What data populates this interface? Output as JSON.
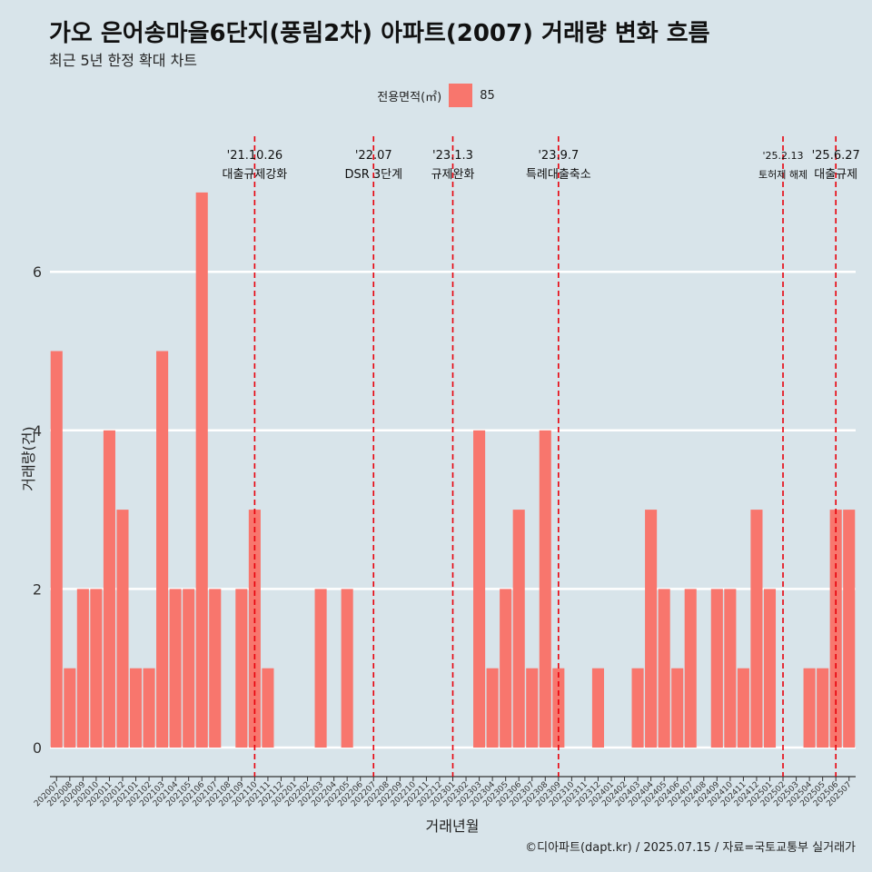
{
  "title": "가오 은어송마을6단지(풍림2차) 아파트(2007) 거래량 변화 흐름",
  "subtitle": "최근 5년 한정 확대 차트",
  "caption": "©디아파트(dapt.kr) / 2025.07.15 / 자료=국토교통부 실거래가",
  "legend": {
    "title": "전용면적(㎡)",
    "entries": [
      "85"
    ]
  },
  "colors": {
    "bar": "#f8766d",
    "background": "#d8e4ea",
    "grid": "#ffffff",
    "event_line": "#e8000b"
  },
  "chart_data": {
    "type": "bar",
    "title": "가오 은어송마을6단지(풍림2차) 아파트(2007) 거래량 변화 흐름",
    "subtitle": "최근 5년 한정 확대 차트",
    "xlabel": "거래년월",
    "ylabel": "거래량(건)",
    "ylim": [
      0,
      7
    ],
    "yticks": [
      0,
      2,
      4,
      6
    ],
    "grid": true,
    "legend_position": "top",
    "categories": [
      "202007",
      "202008",
      "202009",
      "202010",
      "202011",
      "202012",
      "202101",
      "202102",
      "202103",
      "202104",
      "202105",
      "202106",
      "202107",
      "202108",
      "202109",
      "202110",
      "202111",
      "202112",
      "202201",
      "202202",
      "202203",
      "202204",
      "202205",
      "202206",
      "202207",
      "202208",
      "202209",
      "202210",
      "202211",
      "202212",
      "202301",
      "202302",
      "202303",
      "202304",
      "202305",
      "202306",
      "202307",
      "202308",
      "202309",
      "202310",
      "202311",
      "202312",
      "202401",
      "202402",
      "202403",
      "202404",
      "202405",
      "202406",
      "202407",
      "202408",
      "202409",
      "202410",
      "202411",
      "202412",
      "202501",
      "202502",
      "202503",
      "202504",
      "202505",
      "202506",
      "202507"
    ],
    "series": [
      {
        "name": "85",
        "values": [
          5,
          1,
          2,
          2,
          4,
          3,
          1,
          1,
          5,
          2,
          2,
          7,
          2,
          0,
          2,
          3,
          1,
          0,
          0,
          0,
          2,
          0,
          2,
          0,
          0,
          0,
          0,
          0,
          0,
          0,
          0,
          0,
          4,
          1,
          2,
          3,
          1,
          4,
          1,
          0,
          0,
          1,
          0,
          0,
          1,
          3,
          2,
          1,
          2,
          0,
          2,
          2,
          1,
          3,
          2,
          0,
          0,
          1,
          1,
          3,
          3
        ]
      }
    ],
    "events": [
      {
        "date": "'21.10.26",
        "label": "대출규제강화",
        "category": "202110"
      },
      {
        "date": "'22.07",
        "label": "DSR 3단계",
        "category": "202207"
      },
      {
        "date": "'23.1.3",
        "label": "규제완화",
        "category": "202301"
      },
      {
        "date": "'23.9.7",
        "label": "특례대출축소",
        "category": "202309"
      },
      {
        "date": "'25.2.13",
        "label": "토허제 해제",
        "category": "202502"
      },
      {
        "date": "'25.6.27",
        "label": "대출규제",
        "category": "202506"
      }
    ]
  }
}
